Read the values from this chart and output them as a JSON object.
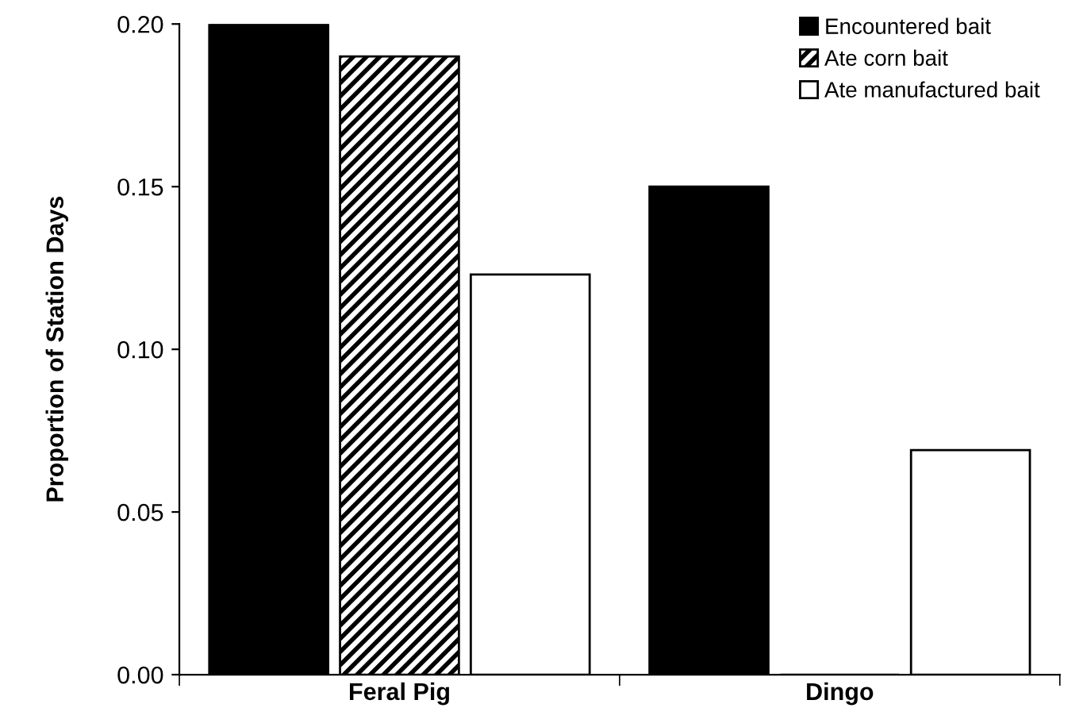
{
  "chart_data": {
    "type": "bar",
    "ylabel": "Proportion of Station Days",
    "categories": [
      "Feral Pig",
      "Dingo"
    ],
    "series": [
      {
        "name": "Encountered bait",
        "color": "#000000",
        "values": [
          0.2,
          0.15
        ]
      },
      {
        "name": "Ate corn bait",
        "color": "#000000",
        "values": [
          0.19,
          0
        ]
      },
      {
        "name": "Ate manufactured bait",
        "color": "#ffffff",
        "values": [
          0.123,
          0.069
        ]
      }
    ],
    "ylim": [
      0,
      0.2
    ],
    "yticks": [
      {
        "value": 0,
        "label": "0.00"
      },
      {
        "value": 0.05,
        "label": "0.05"
      },
      {
        "value": 0.1,
        "label": "0.10"
      },
      {
        "value": 0.15,
        "label": "0.15"
      },
      {
        "value": 0.2,
        "label": "0.20"
      }
    ],
    "grid": false,
    "legend": "top right"
  }
}
